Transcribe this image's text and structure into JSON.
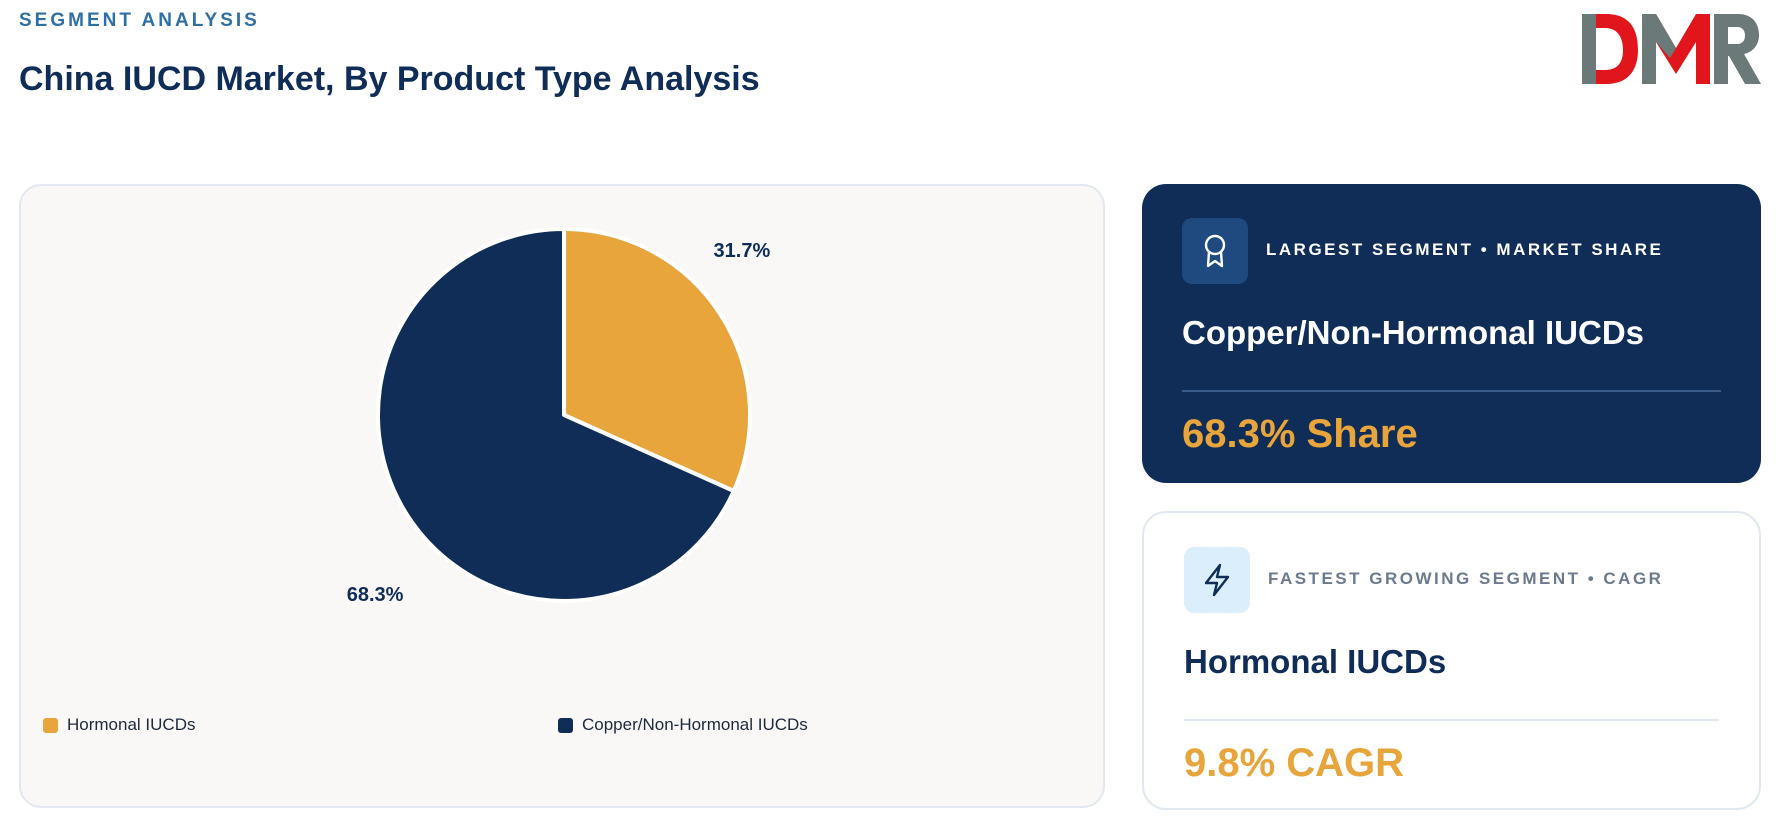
{
  "header": {
    "eyebrow": "SEGMENT ANALYSIS",
    "title": "China IUCD Market, By Product Type Analysis",
    "logo_text": "DMR"
  },
  "colors": {
    "hormonal": "#e8a53c",
    "copper": "#0f2d57",
    "accent": "#e8a53c",
    "logo_grey": "#6b7a78",
    "logo_red": "#e0161c"
  },
  "chart_data": {
    "type": "pie",
    "slices": [
      {
        "name": "Hormonal IUCDs",
        "value": 31.7,
        "label": "31.7%"
      },
      {
        "name": "Copper/Non-Hormonal IUCDs",
        "value": 68.3,
        "label": "68.3%"
      }
    ],
    "legend_position": "bottom"
  },
  "cards": {
    "largest": {
      "icon": "award-ribbon-icon",
      "label": "LARGEST SEGMENT • MARKET SHARE",
      "name": "Copper/Non-Hormonal IUCDs",
      "value": "68.3% Share"
    },
    "fastest": {
      "icon": "lightning-bolt-icon",
      "label": "FASTEST GROWING SEGMENT • CAGR",
      "name": "Hormonal IUCDs",
      "value": "9.8% CAGR"
    }
  }
}
